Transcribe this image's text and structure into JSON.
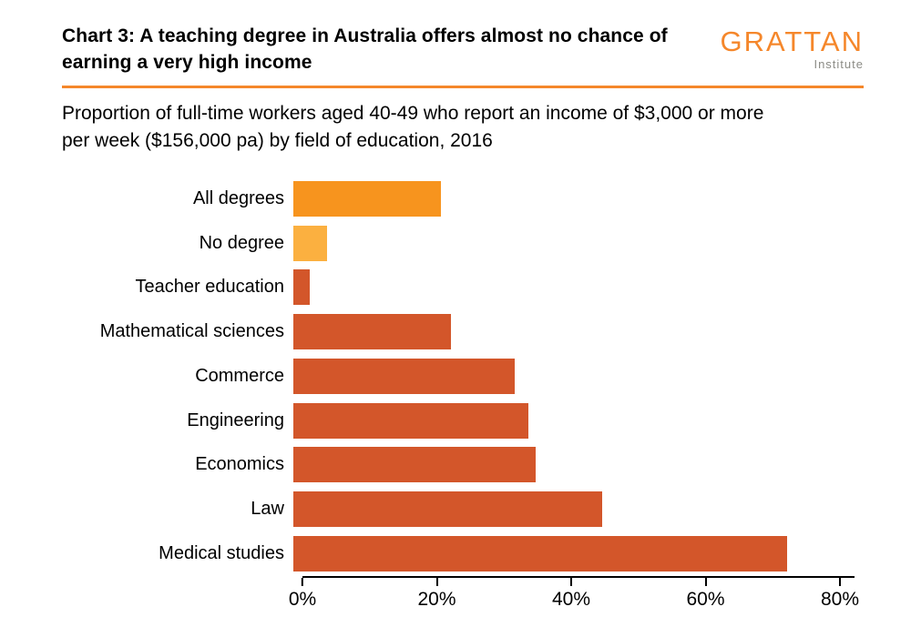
{
  "header": {
    "title": "Chart 3: A teaching degree in Australia offers almost no chance of earning a very high income",
    "logo": {
      "name": "GRATTAN",
      "sub": "Institute"
    }
  },
  "subtitle": "Proportion of full-time workers aged 40-49 who report an income of $3,000 or more per week ($156,000 pa) by field of education, 2016",
  "chart_data": {
    "type": "bar",
    "orientation": "horizontal",
    "title": "Chart 3: A teaching degree in Australia offers almost no chance of earning a very high income",
    "subtitle": "Proportion of full-time workers aged 40-49 who report an income of $3,000 or more per week ($156,000 pa) by field of education, 2016",
    "categories": [
      "All degrees",
      "No degree",
      "Teacher education",
      "Mathematical sciences",
      "Commerce",
      "Engineering",
      "Economics",
      "Law",
      "Medical studies"
    ],
    "values": [
      22,
      5,
      2.5,
      23.5,
      33,
      35,
      36,
      46,
      73.5
    ],
    "bar_colors": [
      "#F7941E",
      "#FBB040",
      "#D3562A",
      "#D3562A",
      "#D3562A",
      "#D3562A",
      "#D3562A",
      "#D3562A",
      "#D3562A"
    ],
    "xlabel": "",
    "ylabel": "",
    "xlim": [
      0,
      80
    ],
    "x_ticks": [
      0,
      20,
      40,
      60,
      80
    ],
    "x_tick_labels": [
      "0%",
      "20%",
      "40%",
      "60%",
      "80%"
    ],
    "grid": false,
    "legend": false
  },
  "colors": {
    "accent_orange": "#F5872B",
    "bar_default": "#D3562A",
    "bar_highlight": "#F7941E",
    "bar_no_degree": "#FBB040",
    "divider": "#F5872B",
    "axis": "#000000",
    "logo_subtext": "#8C8C86"
  }
}
